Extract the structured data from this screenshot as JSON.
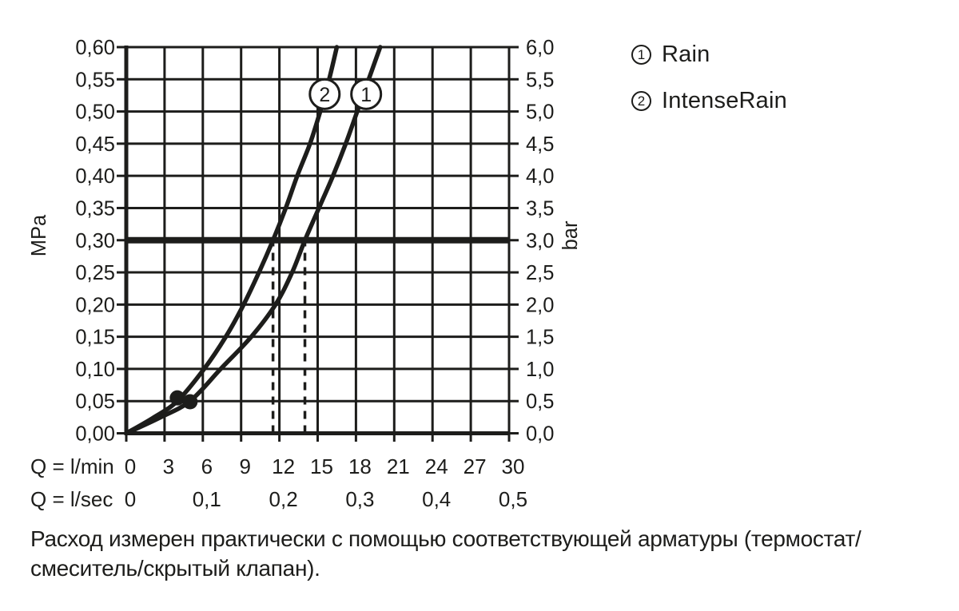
{
  "legend": {
    "items": [
      {
        "num": "1",
        "label": "Rain"
      },
      {
        "num": "2",
        "label": "IntenseRain"
      }
    ]
  },
  "caption": {
    "line1": "Расход измерен практически с помощью соответствующей арматуры (термостат/",
    "line2": "смеситель/скрытый клапан)."
  },
  "colors": {
    "ink": "#1d1d1b",
    "background": "#ffffff"
  },
  "chart_data": {
    "type": "line",
    "title": "",
    "grid": true,
    "x_axis": {
      "row1_label": "Q = l/min",
      "row2_label": "Q = l/sec",
      "range_lmin": [
        0,
        30
      ],
      "ticks_lmin": {
        "values": [
          0,
          3,
          6,
          9,
          12,
          15,
          18,
          21,
          24,
          27,
          30
        ],
        "labels": [
          "0",
          "3",
          "6",
          "9",
          "12",
          "15",
          "18",
          "21",
          "24",
          "27",
          "30"
        ]
      },
      "ticks_lsec": {
        "values_lmin": [
          0,
          6,
          12,
          18,
          24,
          30
        ],
        "labels": [
          "0",
          "0,1",
          "0,2",
          "0,3",
          "0,4",
          "0,5"
        ]
      }
    },
    "y_axis_left": {
      "label": "MPa",
      "range": [
        0,
        0.6
      ],
      "ticks": {
        "values": [
          0.6,
          0.55,
          0.5,
          0.45,
          0.4,
          0.35,
          0.3,
          0.25,
          0.2,
          0.15,
          0.1,
          0.05,
          0.0
        ],
        "labels": [
          "0,60",
          "0,55",
          "0,50",
          "0,45",
          "0,40",
          "0,35",
          "0,30",
          "0,25",
          "0,20",
          "0,15",
          "0,10",
          "0,05",
          "0,00"
        ]
      }
    },
    "y_axis_right": {
      "label": "bar",
      "range": [
        0,
        6
      ],
      "ticks": {
        "values_mpa": [
          0.6,
          0.55,
          0.5,
          0.45,
          0.4,
          0.35,
          0.3,
          0.25,
          0.2,
          0.15,
          0.1,
          0.05,
          0.0
        ],
        "labels": [
          "6,0",
          "5,5",
          "5,0",
          "4,5",
          "4,0",
          "3,5",
          "3,0",
          "2,5",
          "2,0",
          "1,5",
          "1,0",
          "0,5",
          "0,0"
        ]
      }
    },
    "reference_line": {
      "pressure_mpa": 0.3,
      "pressure_bar": 3.0
    },
    "dashed_guides_lmin": [
      11.5,
      14.0
    ],
    "markers": [
      {
        "series": "IntenseRain",
        "q_lmin": 4.0,
        "p_mpa": 0.055
      },
      {
        "series": "Rain",
        "q_lmin": 5.0,
        "p_mpa": 0.049
      }
    ],
    "series": [
      {
        "id": "1",
        "name": "Rain",
        "label_pos": {
          "q_lmin": 18.8,
          "p_mpa": 0.527
        },
        "points": [
          [
            0,
            0
          ],
          [
            2.6,
            0.024
          ],
          [
            5.0,
            0.05
          ],
          [
            7.4,
            0.1
          ],
          [
            9.8,
            0.15
          ],
          [
            11.7,
            0.2
          ],
          [
            13.0,
            0.25
          ],
          [
            14.0,
            0.3
          ],
          [
            15.1,
            0.35
          ],
          [
            16.2,
            0.4
          ],
          [
            17.2,
            0.45
          ],
          [
            18.1,
            0.5
          ],
          [
            19.0,
            0.55
          ],
          [
            19.9,
            0.6
          ]
        ]
      },
      {
        "id": "2",
        "name": "IntenseRain",
        "label_pos": {
          "q_lmin": 15.55,
          "p_mpa": 0.527
        },
        "points": [
          [
            0,
            0
          ],
          [
            2.1,
            0.024
          ],
          [
            4.0,
            0.05
          ],
          [
            6.1,
            0.1
          ],
          [
            7.8,
            0.15
          ],
          [
            9.2,
            0.2
          ],
          [
            10.4,
            0.25
          ],
          [
            11.5,
            0.3
          ],
          [
            12.5,
            0.35
          ],
          [
            13.4,
            0.4
          ],
          [
            14.4,
            0.45
          ],
          [
            15.2,
            0.5
          ],
          [
            15.9,
            0.55
          ],
          [
            16.5,
            0.6
          ]
        ]
      }
    ]
  }
}
